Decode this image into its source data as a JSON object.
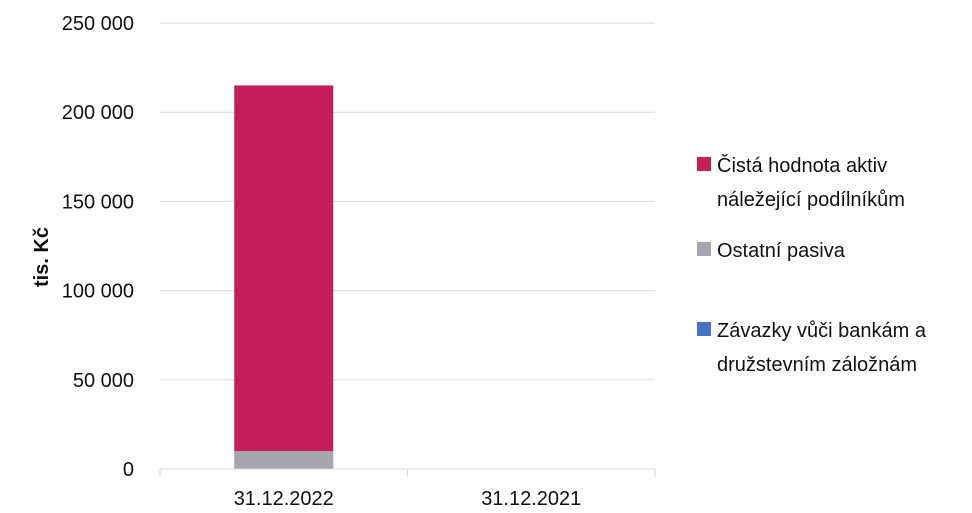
{
  "chart_data": {
    "type": "bar",
    "stacked": true,
    "categories": [
      "31.12.2022",
      "31.12.2021"
    ],
    "series": [
      {
        "name": "Závazky vůči bankám a družstevním záložnám",
        "values": [
          0,
          0
        ],
        "color": "#4472c4"
      },
      {
        "name": "Ostatní pasiva",
        "values": [
          10000,
          0
        ],
        "color": "#a6a6ae"
      },
      {
        "name": "Čistá hodnota aktiv náležející podílníkům",
        "values": [
          205000,
          0
        ],
        "color": "#c41e5a"
      }
    ],
    "legend": [
      {
        "series_index": 2,
        "lines": [
          "Čistá hodnota aktiv",
          "náležející podílníkům"
        ]
      },
      {
        "series_index": 1,
        "lines": [
          "Ostatní pasiva"
        ]
      },
      {
        "series_index": 0,
        "lines": [
          "Závazky vůči bankám a",
          "družstevním záložnám"
        ]
      }
    ],
    "ylabel": "tis. Kč",
    "xlabel": "",
    "ylim": [
      0,
      250000
    ],
    "yticks": [
      0,
      50000,
      100000,
      150000,
      200000,
      250000
    ],
    "ytick_labels": [
      "0",
      "50 000",
      "100 000",
      "150 000",
      "200 000",
      "250 000"
    ],
    "grid": true,
    "legend_position": "right"
  }
}
